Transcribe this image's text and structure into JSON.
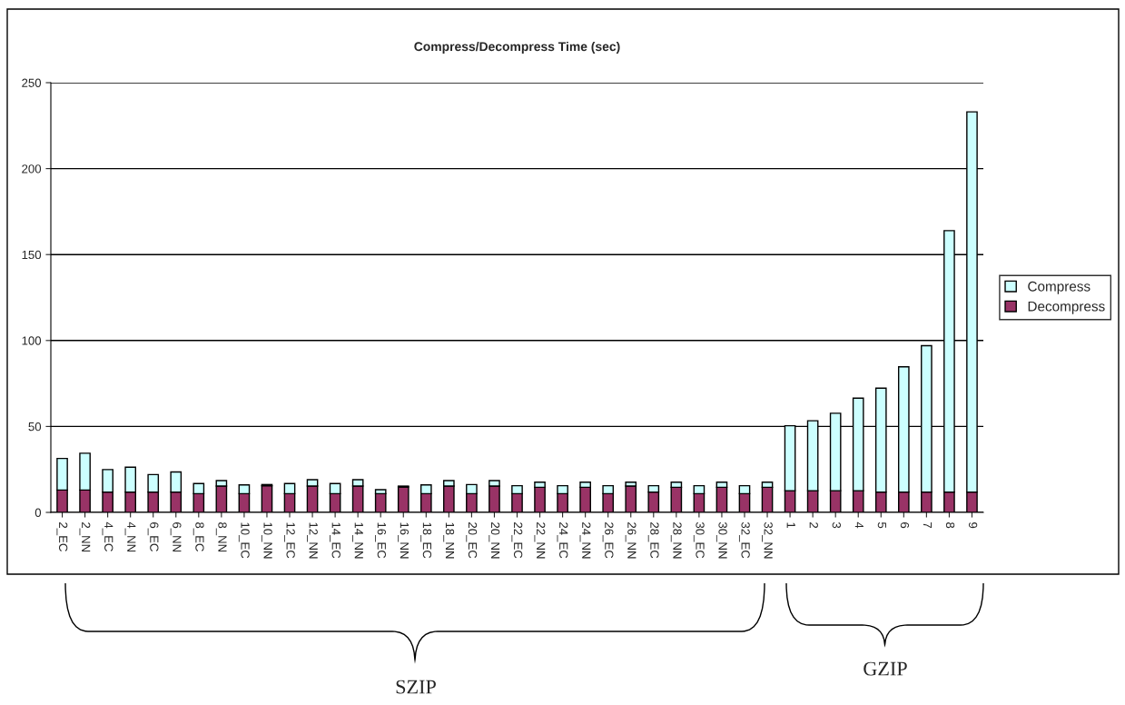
{
  "chart_data": {
    "type": "bar",
    "title": "Compress/Decompress Time (sec)",
    "categories": [
      "2_EC",
      "2_NN",
      "4_EC",
      "4_NN",
      "6_EC",
      "6_NN",
      "8_EC",
      "8_NN",
      "10_EC",
      "10_NN",
      "12_EC",
      "12_NN",
      "14_EC",
      "14_NN",
      "16_EC",
      "16_NN",
      "18_EC",
      "18_NN",
      "20_EC",
      "20_NN",
      "22_EC",
      "22_NN",
      "24_EC",
      "24_NN",
      "26_EC",
      "26_NN",
      "28_EC",
      "28_NN",
      "30_EC",
      "30_NN",
      "32_EC",
      "32_NN",
      "1",
      "2",
      "3",
      "4",
      "5",
      "6",
      "7",
      "8",
      "9"
    ],
    "stacked": true,
    "series": [
      {
        "name": "Decompress",
        "color": "#993366",
        "values": [
          13.0,
          13.0,
          11.8,
          11.8,
          11.8,
          11.8,
          10.9,
          15.3,
          10.9,
          15.5,
          10.9,
          15.3,
          10.9,
          15.3,
          10.9,
          14.8,
          10.9,
          15.3,
          10.9,
          15.3,
          10.9,
          14.6,
          10.9,
          14.6,
          10.9,
          15.3,
          11.8,
          14.6,
          10.9,
          14.6,
          10.9,
          14.6,
          12.6,
          12.6,
          12.6,
          12.6,
          11.8,
          11.8,
          11.8,
          11.8,
          11.8
        ]
      },
      {
        "name": "Compress",
        "color": "#ccffff",
        "values": [
          18.4,
          21.4,
          13.1,
          14.5,
          10.2,
          11.7,
          5.9,
          3.2,
          5.1,
          0.7,
          5.9,
          3.7,
          5.9,
          3.7,
          2.3,
          0.5,
          5.1,
          3.2,
          5.3,
          3.2,
          4.6,
          3.0,
          4.6,
          3.0,
          4.6,
          2.3,
          3.7,
          3.0,
          4.6,
          3.0,
          4.6,
          3.0,
          37.8,
          40.7,
          45.1,
          53.9,
          60.5,
          72.9,
          85.2,
          152.1,
          221.2
        ]
      }
    ],
    "ylim": [
      0,
      250
    ],
    "yticks": [
      0,
      50,
      100,
      150,
      200,
      250
    ],
    "grid": "y",
    "legend": "right",
    "annotations": [
      "SZIP",
      "GZIP"
    ]
  }
}
